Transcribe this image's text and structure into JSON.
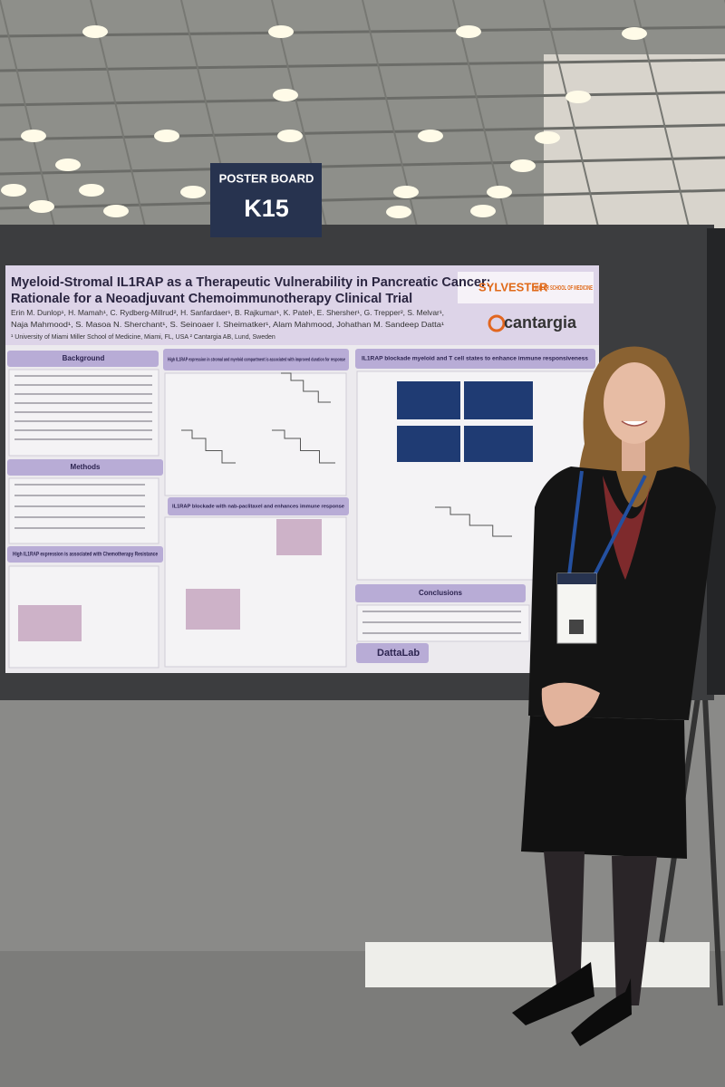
{
  "sign": {
    "label": "POSTER BOARD",
    "code": "K15"
  },
  "poster": {
    "title_line1": "Myeloid-Stromal IL1RAP as a Therapeutic Vulnerability in Pancreatic Cancer:",
    "title_line2": "Rationale for a Neoadjuvant Chemoimmunotherapy Clinical Trial",
    "authors": [
      "Erin M. Dunlop¹, H. Mamah¹, C. Rydberg-Millrud², H. Sanfardaer¹, B. Rajkumar¹, K. Patel¹, E. Shersher¹, G. Trepper², S. Melvar¹,",
      "Naja Mahmood¹, S. Masoa N. Sherchant¹, S. Seinoaer I. Sheimatker¹, Alam Mahmood, Johathan M. Sandeep Datta¹",
      "¹ University of Miami Miller School of Medicine, Miami, FL, USA  ² Cantargia AB, Lund, Sweden"
    ],
    "logos": {
      "sylvester": "SYLVESTER",
      "school": "MILLER SCHOOL OF MEDICINE",
      "company": "cantargia",
      "lab": "DattaLab"
    },
    "sections": [
      "Background",
      "Methods",
      "High IL1RAP expression is associated with Chemotherapy Resistance",
      "High IL1RAP expression in stromal and myeloid compartment is associated with improved duration for response",
      "IL1RAP blockade with nab-paclitaxel and enhances immune response",
      "IL1RAP blockade myeloid and T cell states to enhance immune responsiveness",
      "Conclusions"
    ]
  }
}
